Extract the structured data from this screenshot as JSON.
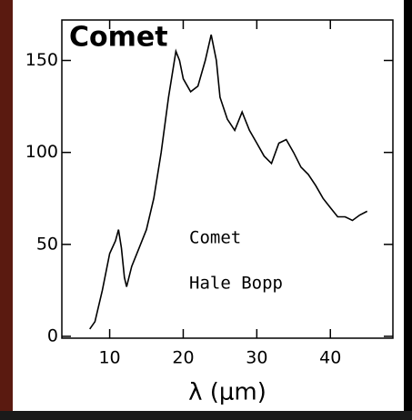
{
  "chart_data": {
    "type": "line",
    "title": "Comet",
    "xlabel": "λ (μm)",
    "annotations": [
      "Comet",
      "Hale Bopp"
    ],
    "x": [
      7.3,
      8,
      9,
      10,
      10.8,
      11.2,
      11.6,
      12,
      12.3,
      13,
      14,
      15,
      16,
      17,
      18,
      19,
      19.5,
      20,
      21,
      22,
      23,
      23.8,
      24.5,
      25,
      26,
      27,
      28,
      29,
      30,
      31,
      32,
      33,
      34,
      35,
      36,
      37,
      38,
      39,
      40,
      41,
      42,
      43,
      44,
      45
    ],
    "series": [
      {
        "name": "Hale Bopp",
        "color": "#000000",
        "values": [
          4,
          8,
          25,
          45,
          52,
          58,
          48,
          32,
          27,
          38,
          48,
          58,
          75,
          100,
          130,
          155,
          150,
          140,
          133,
          136,
          150,
          164,
          150,
          130,
          118,
          112,
          122,
          112,
          105,
          98,
          94,
          105,
          107,
          100,
          92,
          88,
          82,
          75,
          70,
          65,
          65,
          63,
          66,
          68
        ]
      }
    ],
    "xlim": [
      3.5,
      48.5
    ],
    "xticks": [
      10,
      20,
      30,
      40
    ],
    "ylim": [
      -1,
      172
    ],
    "yticks": [
      0,
      50,
      100,
      150
    ]
  }
}
